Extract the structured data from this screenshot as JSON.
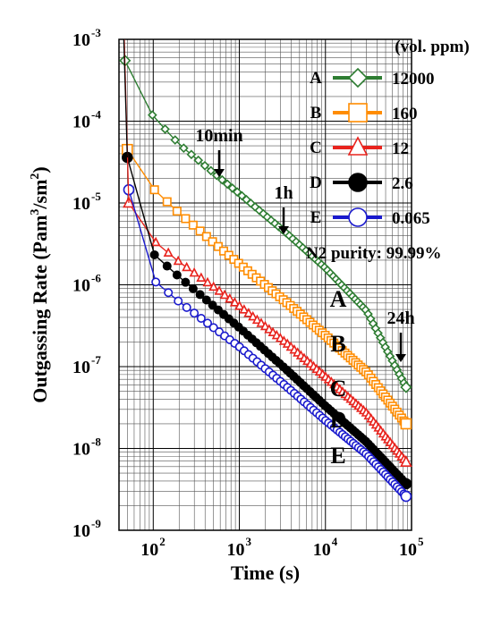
{
  "chart_data": {
    "type": "scatter",
    "xlabel": "Time (s)",
    "ylabel": "Outgassing Rate (Pam",
    "ylabel_sup1": "3",
    "ylabel_mid": "/sm",
    "ylabel_sup2": "2",
    "ylabel_end": ")",
    "x_scale": "log",
    "y_scale": "log",
    "xlim": [
      40,
      100000
    ],
    "ylim": [
      1e-09,
      0.001
    ],
    "grid": true,
    "x_tick_labels": [
      {
        "value": 100,
        "base": "10",
        "exp": "2"
      },
      {
        "value": 1000,
        "base": "10",
        "exp": "3"
      },
      {
        "value": 10000,
        "base": "10",
        "exp": "4"
      },
      {
        "value": 100000,
        "base": "10",
        "exp": "5"
      }
    ],
    "y_tick_labels": [
      {
        "value": 0.001,
        "base": "10",
        "exp": "-3"
      },
      {
        "value": 0.0001,
        "base": "10",
        "exp": "-4"
      },
      {
        "value": 1e-05,
        "base": "10",
        "exp": "-5"
      },
      {
        "value": 1e-06,
        "base": "10",
        "exp": "-6"
      },
      {
        "value": 1e-07,
        "base": "10",
        "exp": "-7"
      },
      {
        "value": 1e-08,
        "base": "10",
        "exp": "-8"
      },
      {
        "value": 1e-09,
        "base": "10",
        "exp": "-9"
      }
    ],
    "legend_title": "(vol. ppm)",
    "legend_position": "top-right",
    "legend_note": "N2 purity: 99.99%",
    "series": [
      {
        "key": "A",
        "name": "12000",
        "color": "#2e7d32",
        "marker": "diamond",
        "filled": false,
        "x": [
          47,
          60,
          100,
          200,
          600,
          1000,
          3600,
          10000,
          30000,
          86400
        ],
        "y": [
          0.00055,
          0.00024,
          0.000115,
          5.2e-05,
          2e-05,
          1.3e-05,
          4.2e-06,
          1.6e-06,
          4.8e-07,
          5.6e-08
        ]
      },
      {
        "key": "B",
        "name": "160",
        "color": "#ff8c00",
        "marker": "square",
        "filled": false,
        "x": [
          50,
          60,
          100,
          200,
          600,
          1000,
          3600,
          10000,
          30000,
          86400
        ],
        "y": [
          4.5e-05,
          2.6e-05,
          1.5e-05,
          7.5e-06,
          2.8e-06,
          1.8e-06,
          6e-07,
          2.4e-07,
          8.5e-08,
          2e-08
        ]
      },
      {
        "key": "C",
        "name": "12",
        "color": "#e8231d",
        "marker": "triangle",
        "filled": false,
        "x": [
          52,
          60,
          100,
          200,
          600,
          1000,
          3600,
          10000,
          30000,
          86400
        ],
        "y": [
          1e-05,
          5.5e-06,
          3.5e-06,
          1.9e-06,
          8.2e-07,
          5.5e-07,
          1.9e-07,
          7.5e-08,
          2.7e-08,
          6.8e-09
        ]
      },
      {
        "key": "D",
        "name": "2.6",
        "color": "#000000",
        "marker": "circle",
        "filled": true,
        "x": [
          50,
          60,
          100,
          200,
          600,
          1000,
          3600,
          10000,
          30000,
          86400
        ],
        "y": [
          3.6e-05,
          4.5e-06,
          2.4e-06,
          1.25e-06,
          4.7e-07,
          3e-07,
          9e-08,
          3.3e-08,
          1.2e-08,
          3.7e-09
        ]
      },
      {
        "key": "E",
        "name": "0.065",
        "color": "#1a1acd",
        "marker": "circle",
        "filled": false,
        "x": [
          52,
          60,
          100,
          200,
          600,
          1000,
          3600,
          10000,
          30000,
          86400
        ],
        "y": [
          1.45e-05,
          2.2e-06,
          1.15e-06,
          6.2e-07,
          2.6e-07,
          1.75e-07,
          5.6e-08,
          2.2e-08,
          8.5e-09,
          2.6e-09
        ]
      }
    ],
    "annotations": [
      {
        "text": "10min",
        "x": 600
      },
      {
        "text": "1h",
        "x": 3600
      },
      {
        "text": "24h",
        "x": 86400
      }
    ]
  }
}
